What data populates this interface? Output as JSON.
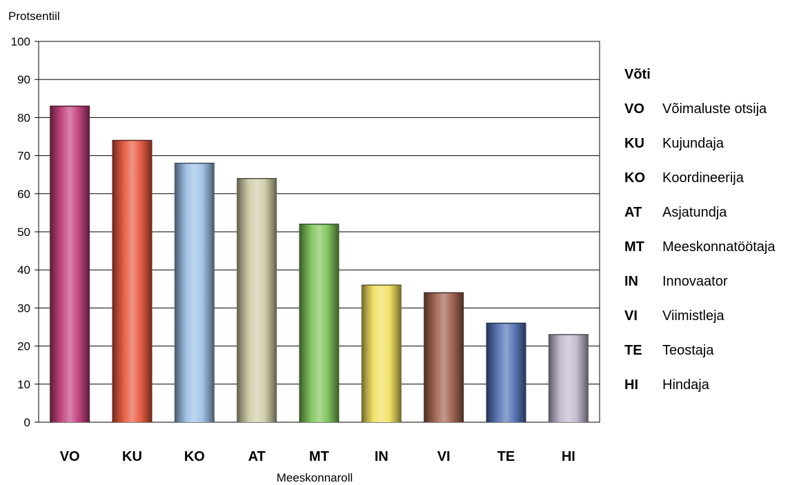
{
  "chart_data": {
    "type": "bar",
    "ylabel": "Protsentiil",
    "xlabel": "Meeskonnaroll",
    "ylim": [
      0,
      100
    ],
    "yticks": [
      0,
      10,
      20,
      30,
      40,
      50,
      60,
      70,
      80,
      90,
      100
    ],
    "grid": true,
    "categories": [
      "VO",
      "KU",
      "KO",
      "AT",
      "MT",
      "IN",
      "VI",
      "TE",
      "HI"
    ],
    "values": [
      83,
      74,
      68,
      64,
      52,
      36,
      34,
      26,
      23
    ],
    "colors": [
      "#c2407e",
      "#e85a40",
      "#9dc0e6",
      "#cfcca6",
      "#7fc45a",
      "#f0e060",
      "#a0634f",
      "#5573b3",
      "#c3b8cf"
    ],
    "legend_title": "Võti",
    "legend": [
      {
        "code": "VO",
        "label": "Võimaluste otsija"
      },
      {
        "code": "KU",
        "label": "Kujundaja"
      },
      {
        "code": "KO",
        "label": "Koordineerija"
      },
      {
        "code": "AT",
        "label": "Asjatundja"
      },
      {
        "code": "MT",
        "label": "Meeskonnatöötaja"
      },
      {
        "code": "IN",
        "label": "Innovaator"
      },
      {
        "code": "VI",
        "label": "Viimistleja"
      },
      {
        "code": "TE",
        "label": "Teostaja"
      },
      {
        "code": "HI",
        "label": "Hindaja"
      }
    ]
  }
}
